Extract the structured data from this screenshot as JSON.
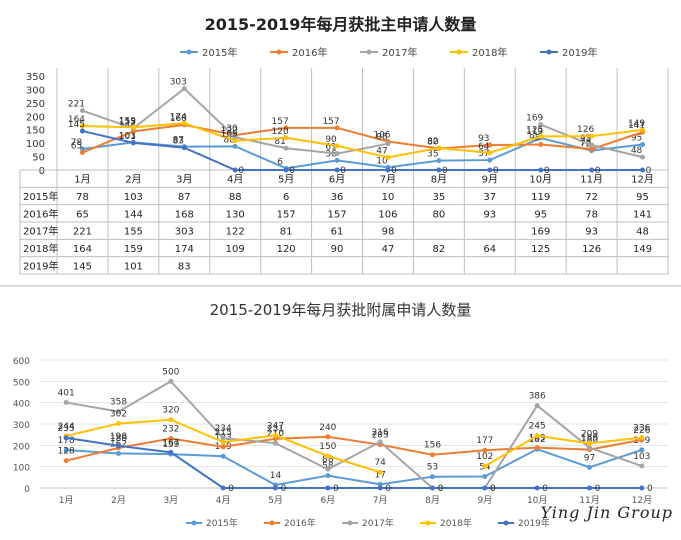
{
  "colors": {
    "2015年": "#5b9bd5",
    "2016年": "#ed7d31",
    "2017年": "#a5a5a5",
    "2018年": "#ffc000",
    "2019年": "#4472c4"
  },
  "watermark": "Ying Jin Group",
  "chart_data": [
    {
      "type": "line",
      "title": "2015-2019年每月获批主申请人数量",
      "categories": [
        "1月",
        "2月",
        "3月",
        "4月",
        "5月",
        "6月",
        "7月",
        "8月",
        "9月",
        "10月",
        "11月",
        "12月"
      ],
      "ylim": [
        0,
        350
      ],
      "yticks": [
        0,
        50,
        100,
        150,
        200,
        250,
        300,
        350
      ],
      "legend_position": "top",
      "data_table": true,
      "grid": false,
      "series": [
        {
          "name": "2015年",
          "values": [
            78,
            103,
            87,
            88,
            6,
            36,
            10,
            35,
            37,
            119,
            72,
            95
          ]
        },
        {
          "name": "2016年",
          "values": [
            65,
            144,
            168,
            130,
            157,
            157,
            106,
            80,
            93,
            95,
            78,
            141
          ]
        },
        {
          "name": "2017年",
          "values": [
            221,
            155,
            303,
            122,
            81,
            61,
            98,
            null,
            null,
            169,
            93,
            48
          ]
        },
        {
          "name": "2018年",
          "values": [
            164,
            159,
            174,
            109,
            120,
            90,
            47,
            82,
            64,
            125,
            126,
            149
          ]
        },
        {
          "name": "2019年",
          "values": [
            145,
            101,
            83,
            0,
            0,
            0,
            0,
            0,
            0,
            0,
            0,
            0
          ]
        }
      ],
      "table_values": {
        "2015年": [
          "78",
          "103",
          "87",
          "88",
          "6",
          "36",
          "10",
          "35",
          "37",
          "119",
          "72",
          "95"
        ],
        "2016年": [
          "65",
          "144",
          "168",
          "130",
          "157",
          "157",
          "106",
          "80",
          "93",
          "95",
          "78",
          "141"
        ],
        "2017年": [
          "221",
          "155",
          "303",
          "122",
          "81",
          "61",
          "98",
          "",
          "",
          "169",
          "93",
          "48"
        ],
        "2018年": [
          "164",
          "159",
          "174",
          "109",
          "120",
          "90",
          "47",
          "82",
          "64",
          "125",
          "126",
          "149"
        ],
        "2019年": [
          "145",
          "101",
          "83",
          "",
          "",
          "",
          "",
          "",
          "",
          "",
          "",
          ""
        ]
      }
    },
    {
      "type": "line",
      "title": "2015-2019年每月获批附属申请人数量",
      "categories": [
        "1月",
        "2月",
        "3月",
        "4月",
        "5月",
        "6月",
        "7月",
        "8月",
        "9月",
        "10月",
        "11月",
        "12月"
      ],
      "ylim": [
        0,
        600
      ],
      "yticks": [
        0,
        100,
        200,
        300,
        400,
        500,
        600
      ],
      "legend_position": "bottom",
      "grid": true,
      "series": [
        {
          "name": "2015年",
          "values": [
            178,
            162,
            159,
            149,
            14,
            58,
            17,
            53,
            54,
            182,
            97,
            179
          ]
        },
        {
          "name": "2016年",
          "values": [
            128,
            188,
            232,
            193,
            231,
            240,
            203,
            156,
            177,
            189,
            180,
            226
          ]
        },
        {
          "name": "2017年",
          "values": [
            401,
            358,
            500,
            234,
            210,
            88,
            216,
            0,
            0,
            386,
            189,
            103
          ]
        },
        {
          "name": "2018年",
          "values": [
            244,
            302,
            320,
            215,
            247,
            150,
            74,
            null,
            102,
            245,
            209,
            236
          ]
        },
        {
          "name": "2019年",
          "values": [
            235,
            198,
            167,
            0,
            0,
            0,
            0,
            0,
            0,
            0,
            0,
            0
          ]
        }
      ]
    }
  ]
}
